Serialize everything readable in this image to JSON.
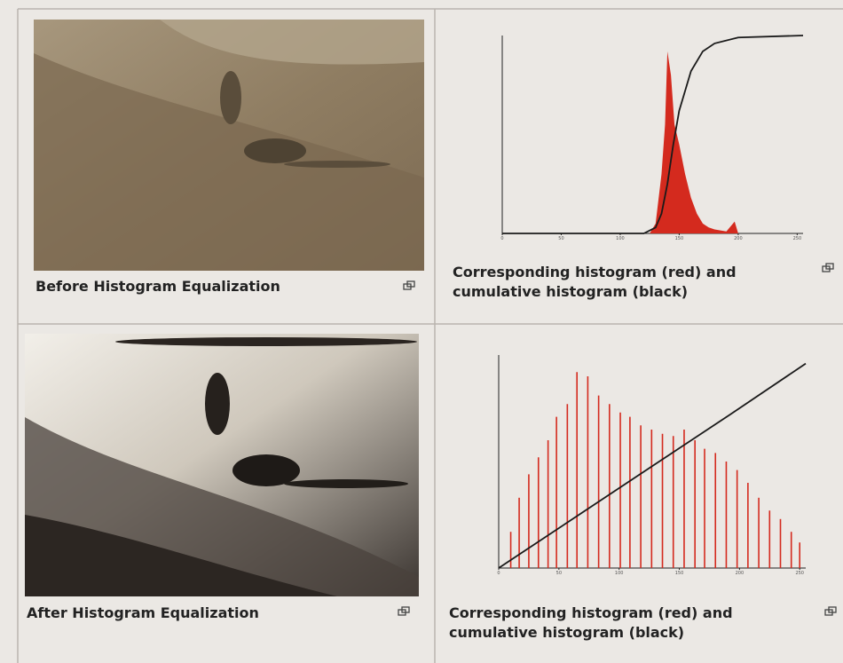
{
  "panels": [
    {
      "caption": "Before Histogram Equalization"
    },
    {
      "caption": "Corresponding histogram (red) and cumulative histogram (black)",
      "chart": {
        "type": "histogram",
        "xlim": [
          0,
          255
        ],
        "ylim": [
          0,
          100
        ],
        "xticks": [
          0,
          50,
          100,
          150,
          200,
          250
        ],
        "series": [
          {
            "type": "area",
            "color": "#d42a1e",
            "x": [
              125,
              130,
              135,
              138,
              140,
              143,
              146,
              150,
              155,
              160,
              165,
              170,
              175,
              180,
              190,
              197,
              200
            ],
            "values": [
              0,
              5,
              30,
              55,
              92,
              80,
              55,
              45,
              30,
              18,
              10,
              5,
              3,
              2,
              1,
              6,
              0
            ]
          },
          {
            "type": "line",
            "color": "#1a1a1a",
            "x": [
              0,
              120,
              130,
              135,
              140,
              145,
              150,
              160,
              170,
              180,
              200,
              255
            ],
            "values": [
              0,
              0,
              3,
              10,
              25,
              45,
              62,
              82,
              92,
              96,
              99,
              100
            ]
          }
        ]
      }
    },
    {
      "caption": "After Histogram Equalization"
    },
    {
      "caption": "Corresponding histogram (red) and cumulative histogram (black)",
      "chart": {
        "type": "histogram",
        "xlim": [
          0,
          255
        ],
        "ylim": [
          0,
          100
        ],
        "xticks": [
          0,
          50,
          100,
          150,
          200,
          250
        ],
        "series": [
          {
            "type": "spikes",
            "color": "#d42a1e",
            "x": [
              10,
              17,
              25,
              33,
              41,
              48,
              57,
              65,
              74,
              83,
              92,
              101,
              109,
              118,
              127,
              136,
              145,
              154,
              163,
              171,
              180,
              189,
              198,
              207,
              216,
              225,
              234,
              243,
              250
            ],
            "values": [
              17,
              33,
              44,
              52,
              60,
              71,
              77,
              92,
              90,
              81,
              77,
              73,
              71,
              67,
              65,
              63,
              62,
              65,
              60,
              56,
              54,
              50,
              46,
              40,
              33,
              27,
              23,
              17,
              12
            ]
          },
          {
            "type": "line",
            "color": "#1a1a1a",
            "x": [
              0,
              64,
              128,
              192,
              255
            ],
            "values": [
              0,
              24,
              48,
              72,
              96
            ]
          }
        ]
      }
    }
  ]
}
